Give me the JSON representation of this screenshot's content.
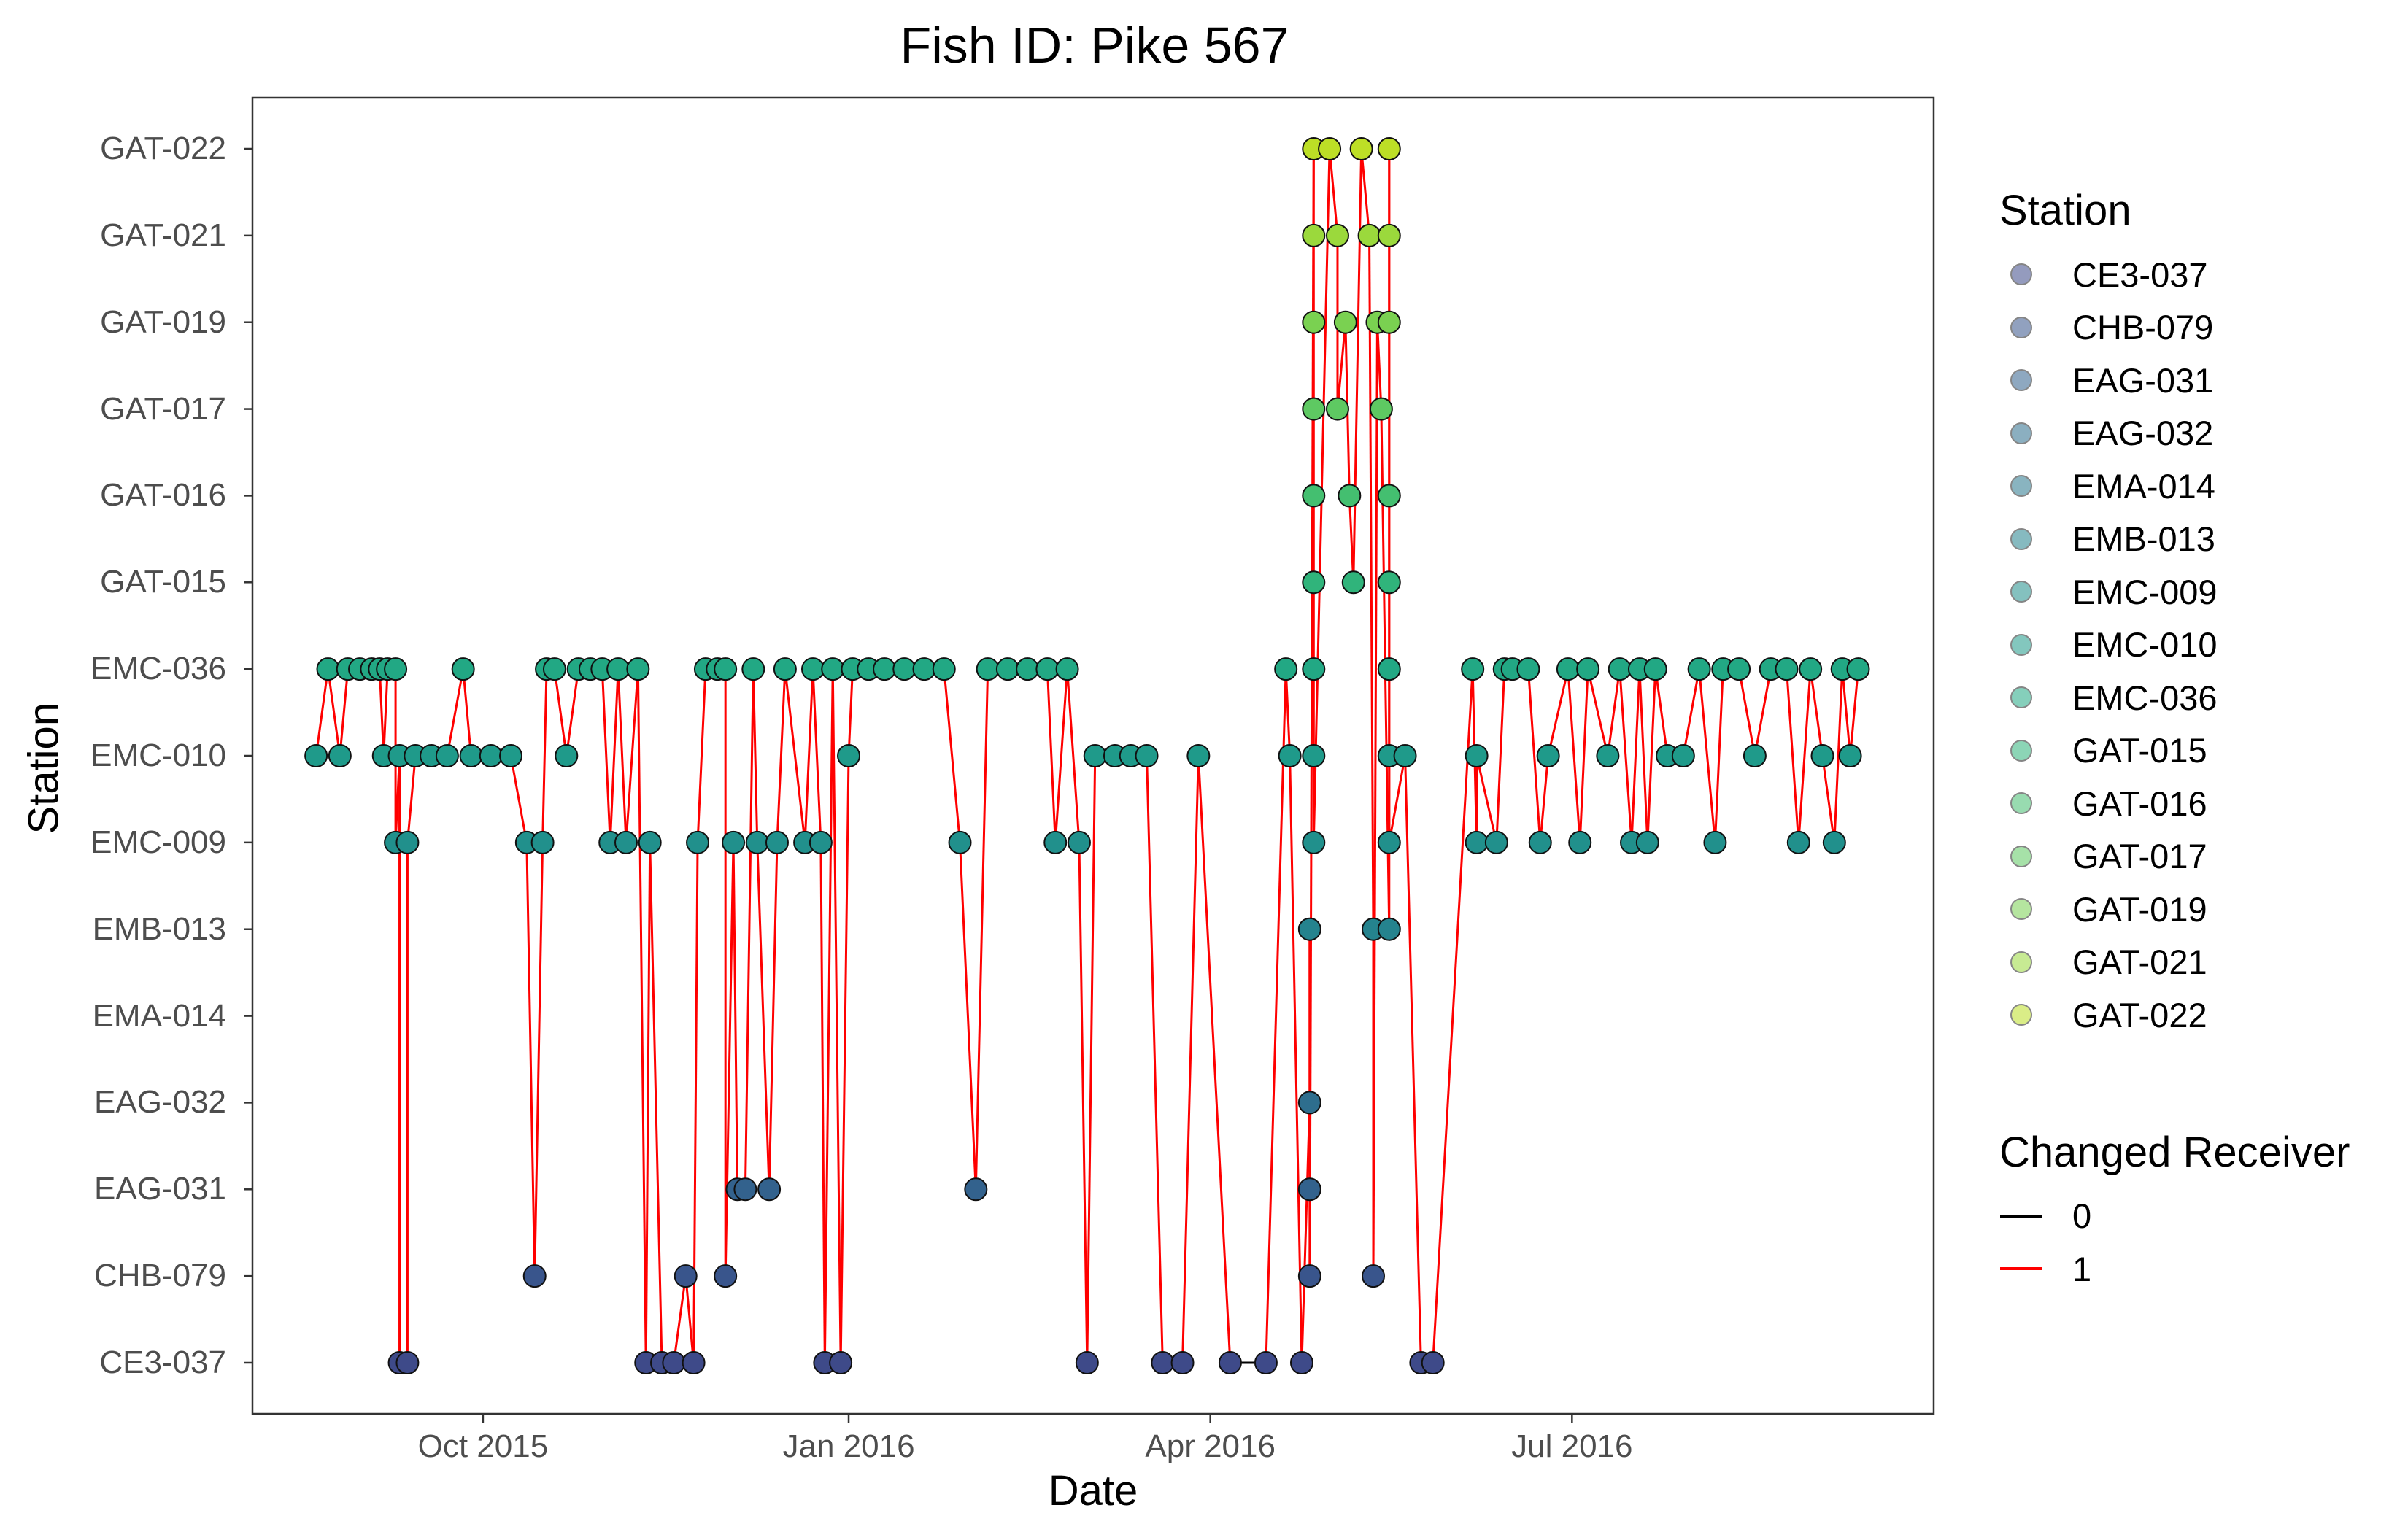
{
  "chart_data": {
    "type": "scatter",
    "title": "Fish ID: Pike 567",
    "xlabel": "Date",
    "ylabel": "Station",
    "x_ticks": [
      {
        "date": "2015-10-01",
        "label": "Oct 2015"
      },
      {
        "date": "2016-01-01",
        "label": "Jan 2016"
      },
      {
        "date": "2016-04-01",
        "label": "Apr 2016"
      },
      {
        "date": "2016-07-01",
        "label": "Jul 2016"
      }
    ],
    "xlim": [
      "2015-08-04",
      "2016-09-30"
    ],
    "y_categories": [
      "CE3-037",
      "CHB-079",
      "EAG-031",
      "EAG-032",
      "EMA-014",
      "EMB-013",
      "EMC-009",
      "EMC-010",
      "EMC-036",
      "GAT-015",
      "GAT-016",
      "GAT-017",
      "GAT-019",
      "GAT-021",
      "GAT-022"
    ],
    "legend_station": {
      "title": "Station",
      "entries": [
        "CE3-037",
        "CHB-079",
        "EAG-031",
        "EAG-032",
        "EMA-014",
        "EMB-013",
        "EMC-009",
        "EMC-010",
        "EMC-036",
        "GAT-015",
        "GAT-016",
        "GAT-017",
        "GAT-019",
        "GAT-021",
        "GAT-022"
      ],
      "colors": [
        "#3e4a89",
        "#39558c",
        "#33628d",
        "#2e6e8e",
        "#2a788e",
        "#25838e",
        "#21908c",
        "#1f9a8a",
        "#22a884",
        "#30b47b",
        "#44bf70",
        "#5ec962",
        "#7ad151",
        "#9bd93c",
        "#bddf26"
      ]
    },
    "legend_receiver": {
      "title": "Changed Receiver",
      "entries": [
        {
          "label": "0",
          "color": "#000000"
        },
        {
          "label": "1",
          "color": "#ff0000"
        }
      ]
    },
    "series": [
      {
        "name": "detections",
        "points": [
          [
            "2015-08-20",
            "EMC-010"
          ],
          [
            "2015-08-23",
            "EMC-036"
          ],
          [
            "2015-08-26",
            "EMC-010"
          ],
          [
            "2015-08-28",
            "EMC-036"
          ],
          [
            "2015-08-31",
            "EMC-036"
          ],
          [
            "2015-09-03",
            "EMC-036"
          ],
          [
            "2015-09-05",
            "EMC-036"
          ],
          [
            "2015-09-07",
            "EMC-036"
          ],
          [
            "2015-09-09",
            "EMC-036"
          ],
          [
            "2015-09-06",
            "EMC-010"
          ],
          [
            "2015-09-10",
            "EMC-010"
          ],
          [
            "2015-09-09",
            "EMC-009"
          ],
          [
            "2015-09-10",
            "CE3-037"
          ],
          [
            "2015-09-12",
            "CE3-037"
          ],
          [
            "2015-09-12",
            "EMC-009"
          ],
          [
            "2015-09-14",
            "EMC-010"
          ],
          [
            "2015-09-18",
            "EMC-010"
          ],
          [
            "2015-09-22",
            "EMC-010"
          ],
          [
            "2015-09-26",
            "EMC-036"
          ],
          [
            "2015-09-28",
            "EMC-010"
          ],
          [
            "2015-10-03",
            "EMC-010"
          ],
          [
            "2015-10-08",
            "EMC-010"
          ],
          [
            "2015-10-12",
            "EMC-009"
          ],
          [
            "2015-10-14",
            "CHB-079"
          ],
          [
            "2015-10-16",
            "EMC-009"
          ],
          [
            "2015-10-17",
            "EMC-036"
          ],
          [
            "2015-10-19",
            "EMC-036"
          ],
          [
            "2015-10-22",
            "EMC-010"
          ],
          [
            "2015-10-25",
            "EMC-036"
          ],
          [
            "2015-10-28",
            "EMC-036"
          ],
          [
            "2015-10-31",
            "EMC-036"
          ],
          [
            "2015-11-02",
            "EMC-009"
          ],
          [
            "2015-11-04",
            "EMC-036"
          ],
          [
            "2015-11-06",
            "EMC-009"
          ],
          [
            "2015-11-09",
            "EMC-036"
          ],
          [
            "2015-11-11",
            "CE3-037"
          ],
          [
            "2015-11-12",
            "EMC-009"
          ],
          [
            "2015-11-15",
            "CE3-037"
          ],
          [
            "2015-11-18",
            "CE3-037"
          ],
          [
            "2015-11-21",
            "CHB-079"
          ],
          [
            "2015-11-23",
            "CE3-037"
          ],
          [
            "2015-11-24",
            "EMC-009"
          ],
          [
            "2015-11-26",
            "EMC-036"
          ],
          [
            "2015-11-29",
            "EMC-036"
          ],
          [
            "2015-12-01",
            "EMC-036"
          ],
          [
            "2015-12-01",
            "CHB-079"
          ],
          [
            "2015-12-03",
            "EMC-009"
          ],
          [
            "2015-12-04",
            "EAG-031"
          ],
          [
            "2015-12-06",
            "EAG-031"
          ],
          [
            "2015-12-08",
            "EMC-036"
          ],
          [
            "2015-12-09",
            "EMC-009"
          ],
          [
            "2015-12-12",
            "EAG-031"
          ],
          [
            "2015-12-14",
            "EMC-009"
          ],
          [
            "2015-12-16",
            "EMC-036"
          ],
          [
            "2015-12-21",
            "EMC-009"
          ],
          [
            "2015-12-23",
            "EMC-036"
          ],
          [
            "2015-12-25",
            "EMC-009"
          ],
          [
            "2015-12-26",
            "CE3-037"
          ],
          [
            "2015-12-28",
            "EMC-036"
          ],
          [
            "2015-12-30",
            "CE3-037"
          ],
          [
            "2016-01-01",
            "EMC-010"
          ],
          [
            "2016-01-02",
            "EMC-036"
          ],
          [
            "2016-01-06",
            "EMC-036"
          ],
          [
            "2016-01-10",
            "EMC-036"
          ],
          [
            "2016-01-15",
            "EMC-036"
          ],
          [
            "2016-01-20",
            "EMC-036"
          ],
          [
            "2016-01-25",
            "EMC-036"
          ],
          [
            "2016-01-29",
            "EMC-009"
          ],
          [
            "2016-02-02",
            "EAG-031"
          ],
          [
            "2016-02-05",
            "EMC-036"
          ],
          [
            "2016-02-10",
            "EMC-036"
          ],
          [
            "2016-02-15",
            "EMC-036"
          ],
          [
            "2016-02-20",
            "EMC-036"
          ],
          [
            "2016-02-22",
            "EMC-009"
          ],
          [
            "2016-02-25",
            "EMC-036"
          ],
          [
            "2016-02-28",
            "EMC-009"
          ],
          [
            "2016-03-01",
            "CE3-037"
          ],
          [
            "2016-03-03",
            "EMC-010"
          ],
          [
            "2016-03-08",
            "EMC-010"
          ],
          [
            "2016-03-12",
            "EMC-010"
          ],
          [
            "2016-03-16",
            "EMC-010"
          ],
          [
            "2016-03-20",
            "CE3-037"
          ],
          [
            "2016-03-25",
            "CE3-037"
          ],
          [
            "2016-03-29",
            "EMC-010"
          ],
          [
            "2016-04-06",
            "CE3-037"
          ],
          [
            "2016-04-15",
            "CE3-037"
          ],
          [
            "2016-04-20",
            "EMC-036"
          ],
          [
            "2016-04-21",
            "EMC-010"
          ],
          [
            "2016-04-24",
            "CE3-037"
          ],
          [
            "2016-04-26",
            "EAG-032"
          ],
          [
            "2016-04-26",
            "EAG-031"
          ],
          [
            "2016-04-26",
            "EMB-013"
          ],
          [
            "2016-04-26",
            "CHB-079"
          ],
          [
            "2016-04-27",
            "GAT-022"
          ],
          [
            "2016-04-27",
            "GAT-021"
          ],
          [
            "2016-04-27",
            "GAT-019"
          ],
          [
            "2016-04-27",
            "GAT-017"
          ],
          [
            "2016-04-27",
            "GAT-016"
          ],
          [
            "2016-04-27",
            "GAT-015"
          ],
          [
            "2016-04-27",
            "EMC-036"
          ],
          [
            "2016-04-27",
            "EMC-010"
          ],
          [
            "2016-04-27",
            "EMC-009"
          ],
          [
            "2016-05-01",
            "GAT-022"
          ],
          [
            "2016-05-03",
            "GAT-021"
          ],
          [
            "2016-05-05",
            "GAT-019"
          ],
          [
            "2016-05-03",
            "GAT-017"
          ],
          [
            "2016-05-06",
            "GAT-016"
          ],
          [
            "2016-05-07",
            "GAT-015"
          ],
          [
            "2016-05-09",
            "GAT-022"
          ],
          [
            "2016-05-11",
            "GAT-021"
          ],
          [
            "2016-05-12",
            "EMB-013"
          ],
          [
            "2016-05-12",
            "CHB-079"
          ],
          [
            "2016-05-13",
            "GAT-019"
          ],
          [
            "2016-05-14",
            "GAT-017"
          ],
          [
            "2016-05-16",
            "EMB-013"
          ],
          [
            "2016-05-16",
            "GAT-022"
          ],
          [
            "2016-05-16",
            "GAT-021"
          ],
          [
            "2016-05-16",
            "GAT-019"
          ],
          [
            "2016-05-16",
            "GAT-016"
          ],
          [
            "2016-05-16",
            "GAT-015"
          ],
          [
            "2016-05-16",
            "EMC-036"
          ],
          [
            "2016-05-16",
            "EMC-010"
          ],
          [
            "2016-05-16",
            "EMC-009"
          ],
          [
            "2016-05-20",
            "EMC-010"
          ],
          [
            "2016-05-24",
            "CE3-037"
          ],
          [
            "2016-05-27",
            "CE3-037"
          ],
          [
            "2016-06-06",
            "EMC-036"
          ],
          [
            "2016-06-07",
            "EMC-009"
          ],
          [
            "2016-06-07",
            "EMC-010"
          ],
          [
            "2016-06-12",
            "EMC-009"
          ],
          [
            "2016-06-14",
            "EMC-036"
          ],
          [
            "2016-06-16",
            "EMC-036"
          ],
          [
            "2016-06-20",
            "EMC-036"
          ],
          [
            "2016-06-23",
            "EMC-009"
          ],
          [
            "2016-06-25",
            "EMC-010"
          ],
          [
            "2016-06-30",
            "EMC-036"
          ],
          [
            "2016-07-03",
            "EMC-009"
          ],
          [
            "2016-07-05",
            "EMC-036"
          ],
          [
            "2016-07-10",
            "EMC-010"
          ],
          [
            "2016-07-13",
            "EMC-036"
          ],
          [
            "2016-07-16",
            "EMC-009"
          ],
          [
            "2016-07-18",
            "EMC-036"
          ],
          [
            "2016-07-20",
            "EMC-009"
          ],
          [
            "2016-07-22",
            "EMC-036"
          ],
          [
            "2016-07-25",
            "EMC-010"
          ],
          [
            "2016-07-29",
            "EMC-010"
          ],
          [
            "2016-08-02",
            "EMC-036"
          ],
          [
            "2016-08-06",
            "EMC-009"
          ],
          [
            "2016-08-08",
            "EMC-036"
          ],
          [
            "2016-08-12",
            "EMC-036"
          ],
          [
            "2016-08-16",
            "EMC-010"
          ],
          [
            "2016-08-20",
            "EMC-036"
          ],
          [
            "2016-08-24",
            "EMC-036"
          ],
          [
            "2016-08-27",
            "EMC-009"
          ],
          [
            "2016-08-30",
            "EMC-036"
          ],
          [
            "2016-09-02",
            "EMC-010"
          ],
          [
            "2016-09-05",
            "EMC-009"
          ],
          [
            "2016-09-07",
            "EMC-036"
          ],
          [
            "2016-09-09",
            "EMC-010"
          ],
          [
            "2016-09-11",
            "EMC-036"
          ]
        ]
      }
    ],
    "grid": false,
    "legend_position": "right"
  }
}
